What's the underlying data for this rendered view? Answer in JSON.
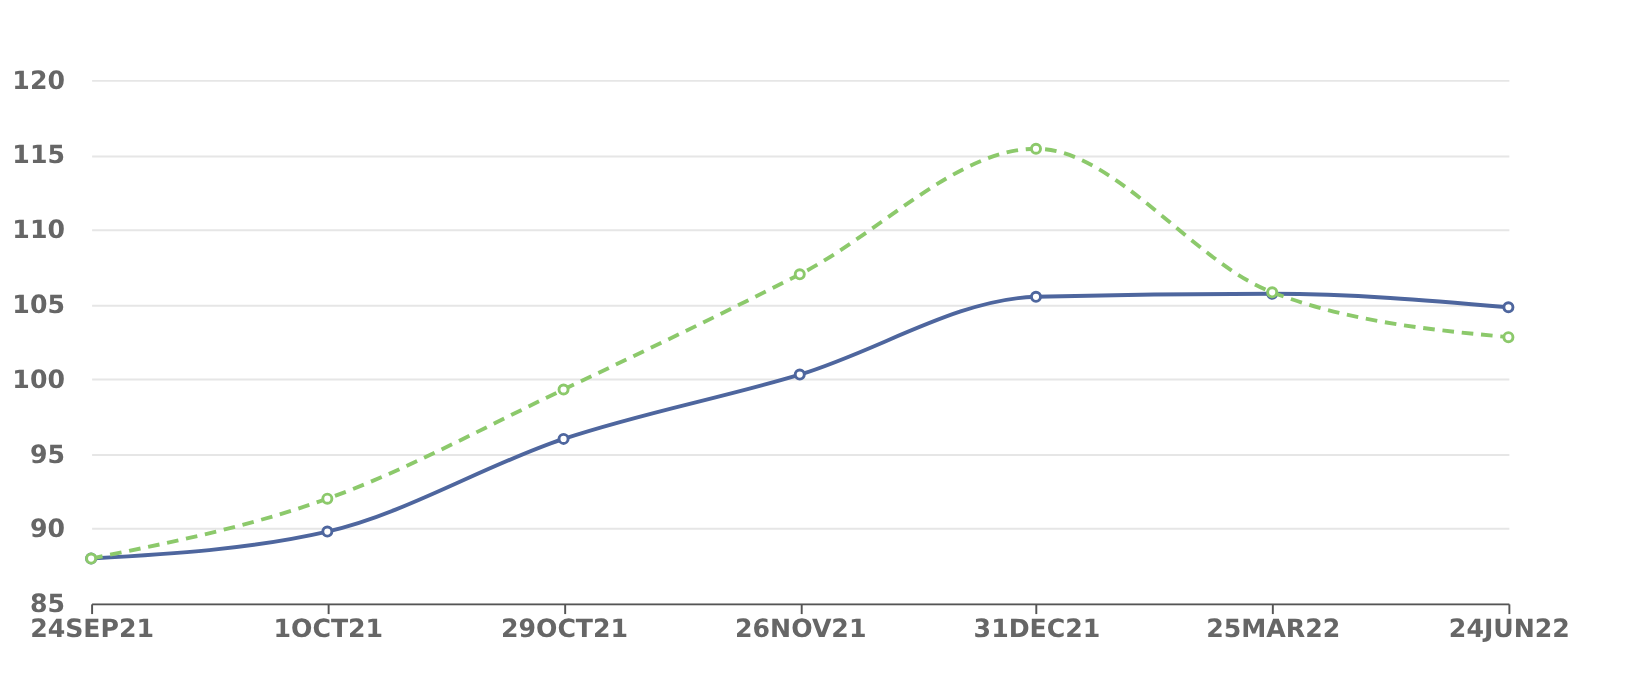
{
  "chart_data": {
    "type": "line",
    "categories": [
      "24SEP21",
      "1OCT21",
      "29OCT21",
      "26NOV21",
      "31DEC21",
      "25MAR22",
      "24JUN22"
    ],
    "series": [
      {
        "color": "#4e669e",
        "line_style": "solid",
        "values": [
          88.0,
          89.8,
          96.0,
          100.3,
          105.5,
          105.7,
          104.8
        ]
      },
      {
        "color": "#8cc96b",
        "line_style": "dashed",
        "values": [
          88.0,
          92.0,
          99.3,
          107.0,
          115.4,
          105.8,
          102.8
        ]
      }
    ],
    "ylim": [
      85,
      120
    ],
    "yticks": [
      85,
      90,
      95,
      100,
      105,
      110,
      115,
      120
    ],
    "grid": "y",
    "marker": "circle"
  }
}
